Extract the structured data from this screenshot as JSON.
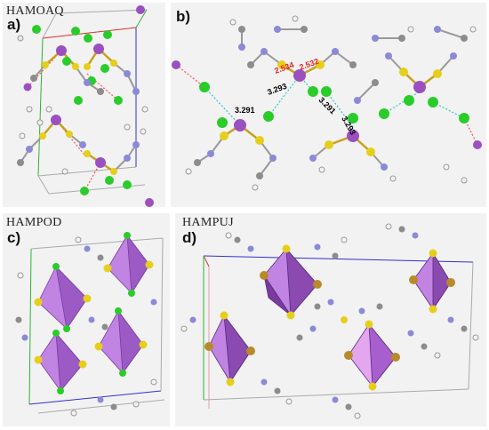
{
  "panels": {
    "a": {
      "letter": "a)",
      "code": "HAMOAQ"
    },
    "b": {
      "letter": "b)",
      "distances_red": [
        "2.534",
        "2.532"
      ],
      "distances_black": [
        "3.291",
        "3.293",
        "3.291",
        "3.293"
      ]
    },
    "c": {
      "letter": "c)",
      "code": "HAMPOD"
    },
    "d": {
      "letter": "d)",
      "code": "HAMPUJ"
    }
  },
  "colors": {
    "panel_bg": "#f2f2f2",
    "metal": "#9b4fc0",
    "chloride": "#29cc29",
    "bromide": "#b88a2a",
    "sulfur": "#e6cf1a",
    "nitrogen": "#8a8ad8",
    "carbon": "#8c8c8c",
    "hydrogen": "#f4f4f4",
    "halogen_bond": "#ff5050",
    "contact": "#2bc6c6",
    "polyhedron": "#c184e3",
    "axis_red": "#d83030",
    "axis_green": "#30b030",
    "axis_blue": "#3030d0"
  }
}
